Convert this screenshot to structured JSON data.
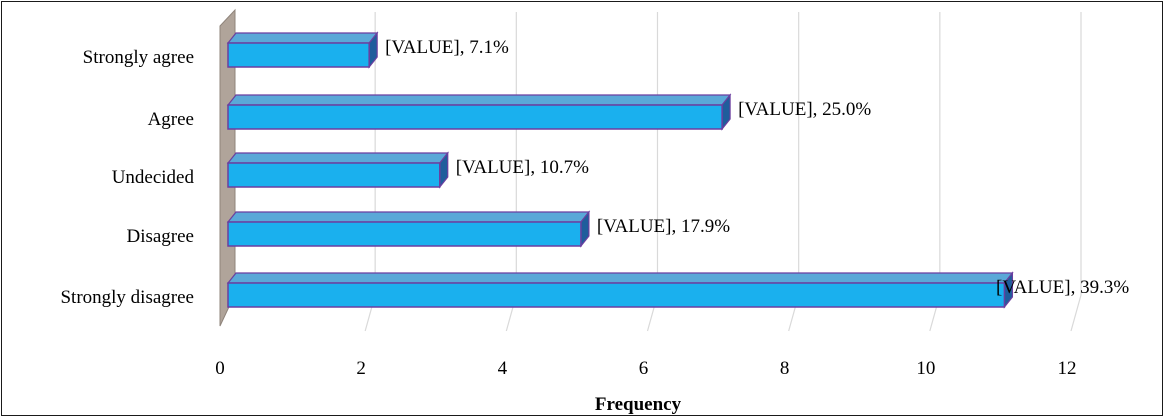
{
  "chart_data": {
    "type": "bar",
    "orientation": "horizontal",
    "categories": [
      "Strongly agree",
      "Agree",
      "Undecided",
      "Disagree",
      "Strongly disagree"
    ],
    "values": [
      2,
      7,
      3,
      5,
      11
    ],
    "data_labels": [
      "[VALUE], 7.1%",
      "[VALUE], 25.0%",
      "[VALUE], 10.7%",
      "[VALUE], 17.9%",
      "[VALUE], 39.3%"
    ],
    "title": "",
    "xlabel": "Frequency",
    "ylabel": "",
    "xlim": [
      0,
      12
    ],
    "xticks": [
      "0",
      "2",
      "4",
      "6",
      "8",
      "10",
      "12"
    ],
    "grid": true,
    "legend": "none",
    "style": "3d"
  },
  "colors": {
    "bar_face": "#1ab0ee",
    "bar_top": "#5aa8d8",
    "bar_side": "#1f5d9c",
    "bar_outline": "#6b3fa0",
    "wall": "#b0a49a",
    "grid": "#d9d9d9"
  }
}
